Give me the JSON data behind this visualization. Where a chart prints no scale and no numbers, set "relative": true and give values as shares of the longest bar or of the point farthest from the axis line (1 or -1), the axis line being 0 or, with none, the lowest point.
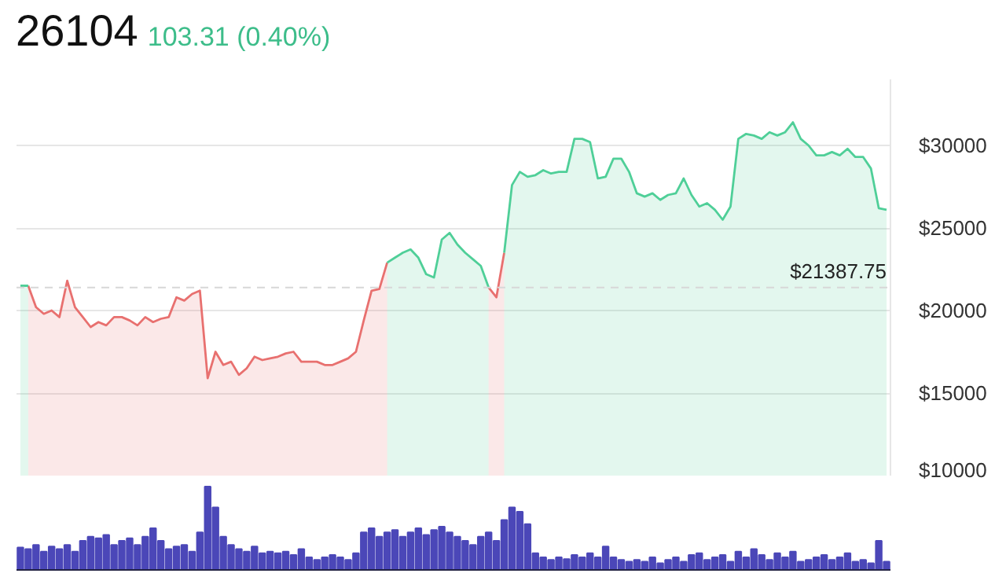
{
  "chart_data": [
    {
      "type": "area",
      "title": "26104",
      "subtitle": "103.31 (0.40%)",
      "categories": [
        null,
        null,
        null,
        null,
        null,
        null,
        null,
        null,
        null,
        null,
        null,
        null,
        null,
        null,
        null,
        null,
        null,
        null,
        null,
        null,
        null,
        null,
        null,
        null,
        null,
        null,
        null,
        null,
        null,
        null,
        null,
        null,
        null,
        null,
        null,
        null,
        null,
        null,
        null,
        null,
        null,
        null,
        null,
        null,
        null,
        null,
        null,
        null,
        null,
        null,
        null,
        null,
        null,
        null,
        null,
        null,
        null,
        null,
        null,
        null,
        null,
        null,
        null,
        null,
        null,
        null,
        null,
        null,
        null,
        null,
        null,
        null,
        null,
        null,
        null,
        null,
        null,
        null,
        null,
        null,
        null,
        null,
        null,
        null,
        null,
        null,
        null,
        null,
        null,
        null,
        null,
        null,
        null,
        null,
        null,
        null,
        null,
        null,
        null,
        null,
        null,
        null,
        null,
        null,
        null,
        null,
        null,
        null,
        null,
        null,
        null,
        null
      ],
      "series": [
        {
          "color": "#e8706f",
          "values": [
            null,
            21500,
            20200,
            19800,
            20000,
            19600,
            21800,
            20200,
            19600,
            19000,
            19300,
            19100,
            19600,
            19600,
            19400,
            19100,
            19600,
            19300,
            19500,
            19600,
            20800,
            20600,
            21000,
            21200,
            15900,
            17500,
            16700,
            16900,
            16100,
            16500,
            17200,
            17000,
            17100,
            17200,
            17400,
            17500,
            16900,
            16900,
            16900,
            16700,
            16700,
            16900,
            17100,
            17500,
            19400,
            21200,
            21300,
            22900,
            null,
            null,
            null,
            null,
            null,
            null,
            null,
            null,
            null,
            null,
            null,
            null,
            21400,
            20800,
            23500,
            null,
            null,
            null,
            null,
            null,
            null,
            null,
            null,
            null,
            null,
            null,
            null,
            null,
            null,
            null,
            null,
            null,
            null,
            null,
            null,
            null,
            null,
            null,
            null,
            null,
            null,
            null,
            null,
            null,
            null,
            null,
            null,
            null,
            null,
            null,
            null,
            null,
            null,
            null,
            null,
            null,
            null,
            null,
            null,
            null,
            null,
            null,
            null,
            null
          ]
        },
        {
          "color": "#4fcf98",
          "values": [
            21500,
            21500,
            null,
            null,
            null,
            null,
            null,
            null,
            null,
            null,
            null,
            null,
            null,
            null,
            null,
            null,
            null,
            null,
            null,
            null,
            null,
            null,
            null,
            null,
            null,
            null,
            null,
            null,
            null,
            null,
            null,
            null,
            null,
            null,
            null,
            null,
            null,
            null,
            null,
            null,
            null,
            null,
            null,
            null,
            null,
            null,
            null,
            22900,
            23200,
            23500,
            23700,
            23200,
            22200,
            22000,
            24300,
            24700,
            24000,
            23500,
            23100,
            22700,
            21400,
            null,
            23500,
            27600,
            28400,
            28100,
            28200,
            28500,
            28300,
            28400,
            28400,
            30400,
            30400,
            30200,
            28000,
            28100,
            29200,
            29200,
            28400,
            27100,
            26900,
            27100,
            26700,
            27000,
            27100,
            28000,
            27000,
            26300,
            26500,
            26100,
            25500,
            26300,
            30400,
            30700,
            30600,
            30400,
            30800,
            30600,
            30800,
            31400,
            30400,
            30000,
            29400,
            29400,
            29600,
            29400,
            29800,
            29300,
            29300,
            28600,
            26200,
            26100
          ]
        }
      ],
      "ylim": [
        10000,
        34000
      ],
      "yticks": [
        {
          "value": 10000,
          "label": "$10000"
        },
        {
          "value": 15000,
          "label": "$15000"
        },
        {
          "value": 20000,
          "label": "$20000"
        },
        {
          "value": 25000,
          "label": "$25000"
        },
        {
          "value": 30000,
          "label": "$30000"
        }
      ],
      "grid": "y",
      "tick_labels": "y",
      "ref_lines": [
        {
          "axis": "y",
          "value": 21387.75,
          "label": "$21387.75",
          "color": "#d8d8d8",
          "line_style": "dashed"
        }
      ]
    },
    {
      "type": "bar",
      "relative": true,
      "tick_labels": false,
      "categories": [
        null,
        null,
        null,
        null,
        null,
        null,
        null,
        null,
        null,
        null,
        null,
        null,
        null,
        null,
        null,
        null,
        null,
        null,
        null,
        null,
        null,
        null,
        null,
        null,
        null,
        null,
        null,
        null,
        null,
        null,
        null,
        null,
        null,
        null,
        null,
        null,
        null,
        null,
        null,
        null,
        null,
        null,
        null,
        null,
        null,
        null,
        null,
        null,
        null,
        null,
        null,
        null,
        null,
        null,
        null,
        null,
        null,
        null,
        null,
        null,
        null,
        null,
        null,
        null,
        null,
        null,
        null,
        null,
        null,
        null,
        null,
        null,
        null,
        null,
        null,
        null,
        null,
        null,
        null,
        null,
        null,
        null,
        null,
        null,
        null,
        null,
        null,
        null,
        null,
        null,
        null,
        null,
        null,
        null,
        null,
        null,
        null,
        null,
        null,
        null,
        null,
        null,
        null,
        null,
        null,
        null,
        null,
        null,
        null,
        null,
        null,
        null
      ],
      "series": [
        {
          "color": "#4b47b8",
          "values": [
            0.27,
            0.25,
            0.3,
            0.22,
            0.28,
            0.25,
            0.3,
            0.22,
            0.35,
            0.4,
            0.38,
            0.42,
            0.3,
            0.35,
            0.38,
            0.3,
            0.4,
            0.5,
            0.35,
            0.25,
            0.28,
            0.3,
            0.22,
            0.45,
            1.0,
            0.75,
            0.4,
            0.3,
            0.25,
            0.22,
            0.28,
            0.2,
            0.22,
            0.2,
            0.22,
            0.18,
            0.25,
            0.15,
            0.12,
            0.15,
            0.18,
            0.15,
            0.12,
            0.2,
            0.45,
            0.5,
            0.4,
            0.45,
            0.48,
            0.4,
            0.45,
            0.5,
            0.42,
            0.48,
            0.52,
            0.45,
            0.4,
            0.35,
            0.3,
            0.4,
            0.45,
            0.35,
            0.6,
            0.75,
            0.7,
            0.55,
            0.2,
            0.15,
            0.12,
            0.15,
            0.13,
            0.18,
            0.15,
            0.2,
            0.15,
            0.28,
            0.15,
            0.12,
            0.1,
            0.12,
            0.1,
            0.15,
            0.08,
            0.12,
            0.15,
            0.1,
            0.18,
            0.2,
            0.12,
            0.15,
            0.18,
            0.1,
            0.22,
            0.15,
            0.25,
            0.18,
            0.12,
            0.2,
            0.15,
            0.22,
            0.1,
            0.12,
            0.15,
            0.18,
            0.12,
            0.15,
            0.2,
            0.1,
            0.12,
            0.08,
            0.35,
            0.1
          ]
        }
      ]
    }
  ]
}
